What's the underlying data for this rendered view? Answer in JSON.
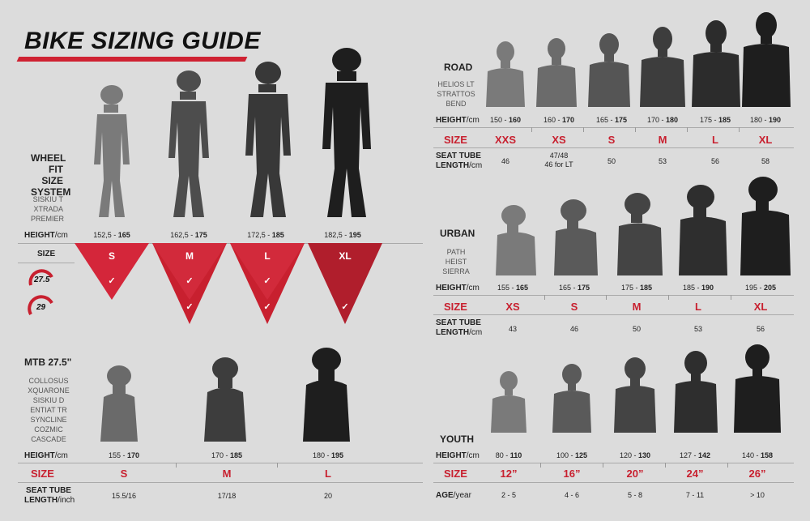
{
  "title": "BIKE SIZING GUIDE",
  "labels": {
    "height": "HEIGHT",
    "height_unit": "/cm",
    "size": "SIZE",
    "seat_tube": "SEAT TUBE",
    "length_cm": "LENGTH",
    "length_cm_unit": "/cm",
    "length_inch_unit": "/inch",
    "age": "AGE",
    "age_unit": "/year"
  },
  "wheel_fit": {
    "title_lines": [
      "WHEEL",
      "FIT SIZE",
      "SYSTEM"
    ],
    "models": [
      "SISKIU T",
      "XTRADA",
      "PREMIER"
    ],
    "wheel_badges": [
      "27.5",
      "29"
    ],
    "heights": [
      {
        "from": "152,5 -",
        "to": "165"
      },
      {
        "from": "162,5 -",
        "to": "175"
      },
      {
        "from": "172,5 -",
        "to": "185"
      },
      {
        "from": "182,5 -",
        "to": "195"
      }
    ],
    "sizes": [
      "S",
      "M",
      "L",
      "XL"
    ],
    "check_mark": "✓"
  },
  "mtb": {
    "title": "MTB 27.5\"",
    "models": [
      "COLLOSUS",
      "XQUARONE",
      "SISKIU D",
      "ENTIAT TR",
      "SYNCLINE",
      "COZMIC",
      "CASCADE"
    ],
    "heights": [
      {
        "from": "155 -",
        "to": "170"
      },
      {
        "from": "170 -",
        "to": "185"
      },
      {
        "from": "180 -",
        "to": "195"
      }
    ],
    "sizes": [
      "S",
      "M",
      "L"
    ],
    "seat_tube": [
      "15.5/16",
      "17/18",
      "20"
    ]
  },
  "road": {
    "title": "ROAD",
    "models": [
      "HELIOS LT",
      "STRATTOS",
      "BEND"
    ],
    "heights": [
      {
        "from": "150 -",
        "to": "160"
      },
      {
        "from": "160 -",
        "to": "170"
      },
      {
        "from": "165 -",
        "to": "175"
      },
      {
        "from": "170 -",
        "to": "180"
      },
      {
        "from": "175 -",
        "to": "185"
      },
      {
        "from": "180 -",
        "to": "190"
      }
    ],
    "sizes": [
      "XXS",
      "XS",
      "S",
      "M",
      "L",
      "XL"
    ],
    "seat_tube": [
      "46",
      "47/48\n46 for LT",
      "50",
      "53",
      "56",
      "58"
    ]
  },
  "urban": {
    "title": "URBAN",
    "models": [
      "PATH",
      "HEIST",
      "SIERRA"
    ],
    "heights": [
      {
        "from": "155 -",
        "to": "165"
      },
      {
        "from": "165 -",
        "to": "175"
      },
      {
        "from": "175 -",
        "to": "185"
      },
      {
        "from": "185 -",
        "to": "190"
      },
      {
        "from": "195 -",
        "to": "205"
      }
    ],
    "sizes": [
      "XS",
      "S",
      "M",
      "L",
      "XL"
    ],
    "seat_tube": [
      "43",
      "46",
      "50",
      "53",
      "56"
    ]
  },
  "youth": {
    "title": "YOUTH",
    "heights": [
      {
        "from": "80 -",
        "to": "110"
      },
      {
        "from": "100 -",
        "to": "125"
      },
      {
        "from": "120 -",
        "to": "130"
      },
      {
        "from": "127 -",
        "to": "142"
      },
      {
        "from": "140 -",
        "to": "158"
      }
    ],
    "sizes": [
      "12”",
      "16”",
      "20”",
      "24”",
      "26”"
    ],
    "ages": [
      "2 - 5",
      "4 - 6",
      "5 - 8",
      "7 - 11",
      "> 10"
    ]
  },
  "colors": {
    "accent": "#c8202f",
    "figure_light": "#7a7a7a",
    "figure_dark": "#1e1e1e",
    "background": "#dcdcdc"
  }
}
